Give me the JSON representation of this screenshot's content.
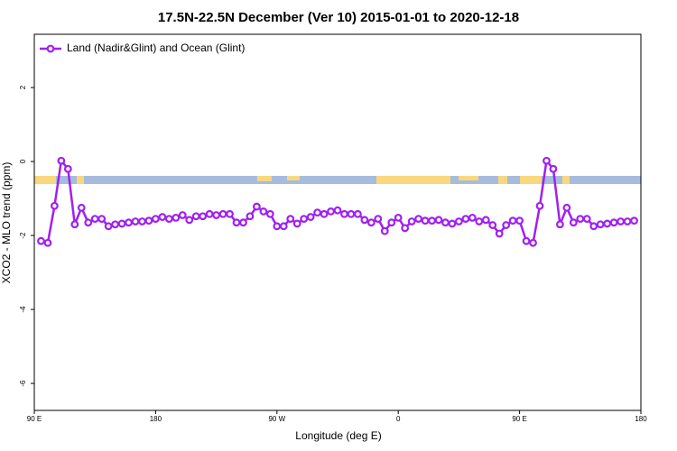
{
  "chart_data": {
    "type": "line",
    "title": "17.5N-22.5N December (Ver 10)   2015-01-01 to 2020-12-18",
    "x_label": "Longitude (deg E)",
    "y_label": "XCO2 - MLO trend (ppm)",
    "x": [
      95,
      100,
      105,
      110,
      115,
      120,
      125,
      130,
      135,
      140,
      145,
      150,
      155,
      160,
      165,
      170,
      175,
      180,
      185,
      190,
      195,
      200,
      205,
      210,
      215,
      220,
      225,
      230,
      235,
      240,
      245,
      250,
      255,
      260,
      265,
      270,
      275,
      280,
      285,
      290,
      295,
      300,
      305,
      310,
      315,
      320,
      325,
      330,
      335,
      340,
      345,
      350,
      355,
      360,
      365,
      370,
      375,
      380,
      385,
      390,
      395,
      400,
      405,
      410,
      415,
      420,
      425,
      430,
      435,
      440,
      445,
      450,
      455,
      460,
      465,
      470,
      475,
      480,
      485,
      490,
      495,
      500,
      505,
      510,
      515,
      520,
      525,
      530,
      535
    ],
    "series": [
      {
        "name": "Land (Nadir&Glint) and Ocean (Glint)",
        "color": "#a020f0",
        "values": [
          -2.15,
          -2.2,
          -1.2,
          0.02,
          -0.2,
          -1.7,
          -1.25,
          -1.65,
          -1.55,
          -1.55,
          -1.75,
          -1.7,
          -1.68,
          -1.65,
          -1.62,
          -1.62,
          -1.6,
          -1.55,
          -1.5,
          -1.55,
          -1.52,
          -1.45,
          -1.58,
          -1.48,
          -1.48,
          -1.42,
          -1.45,
          -1.42,
          -1.42,
          -1.65,
          -1.65,
          -1.48,
          -1.22,
          -1.35,
          -1.42,
          -1.75,
          -1.75,
          -1.55,
          -1.68,
          -1.55,
          -1.5,
          -1.38,
          -1.42,
          -1.35,
          -1.32,
          -1.42,
          -1.42,
          -1.42,
          -1.58,
          -1.65,
          -1.55,
          -1.88,
          -1.65,
          -1.52,
          -1.8,
          -1.62,
          -1.55,
          -1.6,
          -1.6,
          -1.58,
          -1.65,
          -1.68,
          -1.62,
          -1.55,
          -1.52,
          -1.62,
          -1.58,
          -1.72,
          -1.95,
          -1.72,
          -1.6,
          -1.6,
          -2.15,
          -2.2,
          -1.2,
          0.02,
          -0.2,
          -1.7,
          -1.25,
          -1.65,
          -1.55,
          -1.55,
          -1.75,
          -1.7,
          -1.68,
          -1.65,
          -1.62,
          -1.62,
          -1.6
        ]
      }
    ],
    "xlim": [
      90,
      540
    ],
    "xticks": [
      {
        "value": 90,
        "label": "90 E"
      },
      180,
      {
        "value": 270,
        "label": "90 W"
      },
      {
        "value": 360,
        "label": "0"
      },
      {
        "value": 450,
        "label": "90 E"
      },
      {
        "value": 540,
        "label": "180"
      }
    ],
    "ylim": [
      -6.73,
      3.44
    ],
    "yticks": [
      -6,
      -4,
      -2,
      0,
      2
    ],
    "legend": "top-left"
  }
}
